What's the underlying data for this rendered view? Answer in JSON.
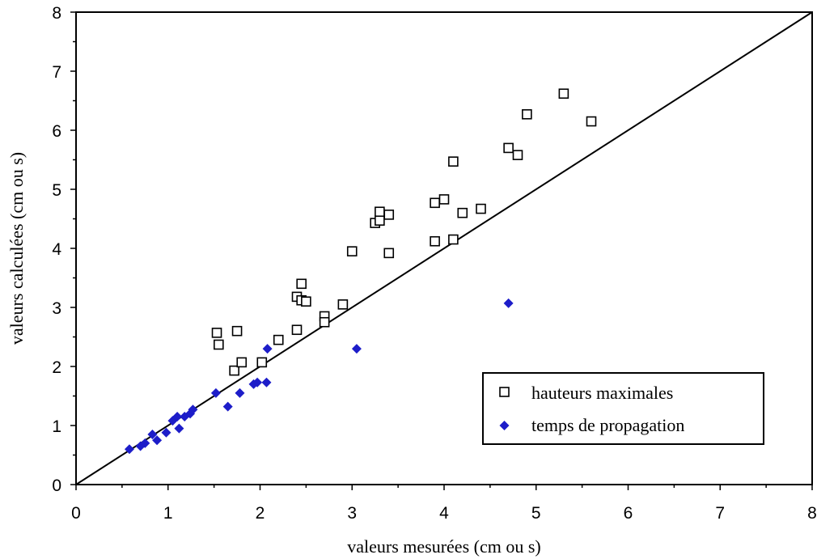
{
  "chart_data": {
    "type": "scatter",
    "title": "",
    "xlabel": "valeurs mesurées (cm ou s)",
    "ylabel": "valeurs calculées (cm ou s)",
    "xlim": [
      0,
      8
    ],
    "ylim": [
      0,
      8
    ],
    "x_ticks": [
      "0",
      "1",
      "2",
      "3",
      "4",
      "5",
      "6",
      "7",
      "8"
    ],
    "y_ticks": [
      "0",
      "1",
      "2",
      "3",
      "4",
      "5",
      "6",
      "7",
      "8"
    ],
    "grid": false,
    "legend_position": "bottom-right",
    "reference_line": {
      "from": [
        0,
        0
      ],
      "to": [
        8,
        8
      ]
    },
    "series": [
      {
        "name": "hauteurs maximales",
        "marker": "open-square",
        "color": "#000000",
        "points": [
          [
            1.53,
            2.57
          ],
          [
            1.55,
            2.37
          ],
          [
            1.75,
            2.6
          ],
          [
            1.72,
            1.93
          ],
          [
            1.8,
            2.07
          ],
          [
            2.02,
            2.07
          ],
          [
            2.2,
            2.45
          ],
          [
            2.4,
            2.62
          ],
          [
            2.4,
            3.18
          ],
          [
            2.45,
            3.4
          ],
          [
            2.45,
            3.12
          ],
          [
            2.5,
            3.1
          ],
          [
            2.7,
            2.85
          ],
          [
            2.7,
            2.75
          ],
          [
            2.9,
            3.05
          ],
          [
            3.0,
            3.95
          ],
          [
            3.25,
            4.43
          ],
          [
            3.3,
            4.47
          ],
          [
            3.3,
            4.62
          ],
          [
            3.4,
            4.57
          ],
          [
            3.4,
            3.92
          ],
          [
            3.9,
            4.77
          ],
          [
            3.9,
            4.12
          ],
          [
            4.0,
            4.83
          ],
          [
            4.1,
            5.47
          ],
          [
            4.1,
            4.15
          ],
          [
            4.2,
            4.6
          ],
          [
            4.4,
            4.67
          ],
          [
            4.7,
            5.7
          ],
          [
            4.8,
            5.58
          ],
          [
            4.9,
            6.27
          ],
          [
            5.3,
            6.62
          ],
          [
            5.6,
            6.15
          ]
        ]
      },
      {
        "name": "temps de propagation",
        "marker": "filled-diamond",
        "color": "#1d1dc9",
        "points": [
          [
            0.58,
            0.6
          ],
          [
            0.7,
            0.65
          ],
          [
            0.75,
            0.7
          ],
          [
            0.83,
            0.85
          ],
          [
            0.88,
            0.75
          ],
          [
            0.98,
            0.88
          ],
          [
            1.05,
            1.08
          ],
          [
            1.1,
            1.15
          ],
          [
            1.12,
            0.95
          ],
          [
            1.18,
            1.15
          ],
          [
            1.24,
            1.2
          ],
          [
            1.27,
            1.27
          ],
          [
            1.52,
            1.55
          ],
          [
            1.65,
            1.32
          ],
          [
            1.78,
            1.55
          ],
          [
            1.93,
            1.7
          ],
          [
            1.97,
            1.73
          ],
          [
            2.07,
            1.73
          ],
          [
            2.08,
            2.3
          ],
          [
            3.05,
            2.3
          ],
          [
            4.7,
            3.07
          ]
        ]
      }
    ]
  }
}
